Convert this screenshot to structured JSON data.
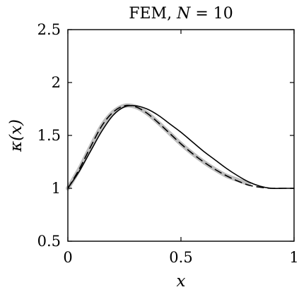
{
  "chart_data": {
    "type": "line",
    "title": "FEM, N = 10",
    "title_parts": {
      "prefix": "FEM, ",
      "variable": "N",
      "suffix": " = 10"
    },
    "xlabel": "x",
    "ylabel": "κ(x)",
    "xlim": [
      0,
      1
    ],
    "ylim": [
      0.5,
      2.5
    ],
    "xticks": [
      0,
      0.5,
      1
    ],
    "xtick_labels": [
      "0",
      "0.5",
      "1"
    ],
    "yticks": [
      0.5,
      1,
      1.5,
      2,
      2.5
    ],
    "ytick_labels": [
      "0.5",
      "1",
      "1.5",
      "2",
      "2.5"
    ],
    "grid": false,
    "series": [
      {
        "style": "gray-band",
        "color": "#b4b4b4",
        "x": [
          0,
          0.05,
          0.1,
          0.15,
          0.2,
          0.25,
          0.3,
          0.35,
          0.4,
          0.45,
          0.5,
          0.55,
          0.6,
          0.65,
          0.7,
          0.75,
          0.8
        ],
        "y": [
          1.0,
          1.18,
          1.39,
          1.59,
          1.72,
          1.78,
          1.77,
          1.71,
          1.62,
          1.52,
          1.42,
          1.33,
          1.25,
          1.18,
          1.12,
          1.08,
          1.04
        ]
      },
      {
        "style": "dashed",
        "color": "#000000",
        "x": [
          0,
          0.05,
          0.1,
          0.15,
          0.2,
          0.25,
          0.3,
          0.35,
          0.4,
          0.45,
          0.5,
          0.55,
          0.6,
          0.65,
          0.7,
          0.75,
          0.8,
          0.85,
          0.9,
          0.95,
          1.0
        ],
        "y": [
          1.0,
          1.18,
          1.39,
          1.59,
          1.72,
          1.78,
          1.77,
          1.71,
          1.62,
          1.52,
          1.42,
          1.33,
          1.25,
          1.18,
          1.12,
          1.07,
          1.03,
          1.01,
          1.0,
          1.0,
          1.0
        ]
      },
      {
        "style": "solid",
        "color": "#000000",
        "x": [
          0,
          0.05,
          0.1,
          0.15,
          0.2,
          0.25,
          0.3,
          0.35,
          0.4,
          0.45,
          0.5,
          0.55,
          0.6,
          0.65,
          0.7,
          0.75,
          0.8,
          0.85,
          0.9,
          0.95,
          1.0
        ],
        "y": [
          1.0,
          1.16,
          1.35,
          1.54,
          1.69,
          1.77,
          1.78,
          1.75,
          1.69,
          1.61,
          1.53,
          1.44,
          1.35,
          1.27,
          1.19,
          1.12,
          1.06,
          1.02,
          1.0,
          1.0,
          1.0
        ]
      }
    ]
  }
}
